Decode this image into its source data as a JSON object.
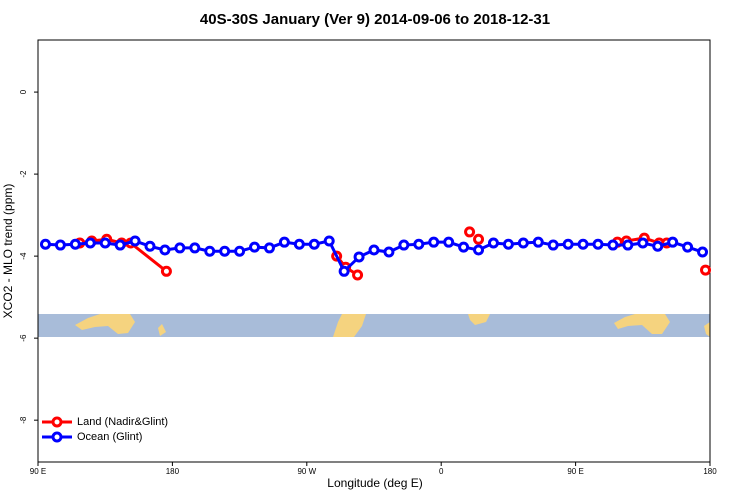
{
  "chart_data": {
    "type": "line",
    "title": "40S-30S January (Ver 9)   2014-09-06 to 2018-12-31",
    "xlabel": "Longitude (deg E)",
    "ylabel": "XCO2 - MLO trend (ppm)",
    "xlim": [
      90,
      540
    ],
    "ylim": [
      -9.02,
      1.27
    ],
    "xticks": [
      {
        "value": 90,
        "label": "90 E"
      },
      180,
      {
        "value": 270,
        "label": "90 W"
      },
      {
        "value": 360,
        "label": "0"
      },
      {
        "value": 450,
        "label": "90 E"
      },
      {
        "value": 540,
        "label": "180"
      }
    ],
    "yticks": [
      0,
      -2,
      -4,
      -6,
      -8
    ],
    "legend": "bottom-left",
    "series": [
      {
        "name": "Land (Nadir&Glint)",
        "color": "#ff0000",
        "x": [
          118,
          126,
          136,
          146,
          152,
          176,
          null,
          290,
          296,
          304,
          null,
          379,
          null,
          385,
          null,
          478,
          484,
          496,
          506,
          511,
          null,
          537
        ],
        "values": [
          -3.68,
          -3.63,
          -3.59,
          -3.68,
          -3.68,
          -4.37,
          null,
          -4.0,
          -4.27,
          -4.46,
          null,
          -3.41,
          null,
          -3.59,
          null,
          -3.66,
          -3.63,
          -3.56,
          -3.68,
          -3.68,
          null,
          -4.34
        ]
      },
      {
        "name": "Ocean (Glint)",
        "color": "#0000ff",
        "x": [
          95,
          105,
          115,
          125,
          135,
          145,
          155,
          165,
          175,
          185,
          195,
          205,
          215,
          225,
          235,
          245,
          255,
          265,
          275,
          285,
          295,
          305,
          315,
          325,
          335,
          345,
          355,
          365,
          375,
          385,
          395,
          405,
          415,
          425,
          435,
          445,
          455,
          465,
          475,
          485,
          495,
          505,
          515,
          525,
          535
        ],
        "values": [
          -3.71,
          -3.73,
          -3.71,
          -3.68,
          -3.68,
          -3.73,
          -3.63,
          -3.76,
          -3.85,
          -3.8,
          -3.8,
          -3.88,
          -3.88,
          -3.88,
          -3.78,
          -3.8,
          -3.66,
          -3.71,
          -3.71,
          -3.63,
          -4.37,
          -4.02,
          -3.85,
          -3.9,
          -3.73,
          -3.71,
          -3.66,
          -3.66,
          -3.78,
          -3.85,
          -3.68,
          -3.71,
          -3.68,
          -3.66,
          -3.73,
          -3.71,
          -3.71,
          -3.71,
          -3.73,
          -3.73,
          -3.68,
          -3.76,
          -3.66,
          -3.78,
          -3.9
        ]
      }
    ]
  }
}
